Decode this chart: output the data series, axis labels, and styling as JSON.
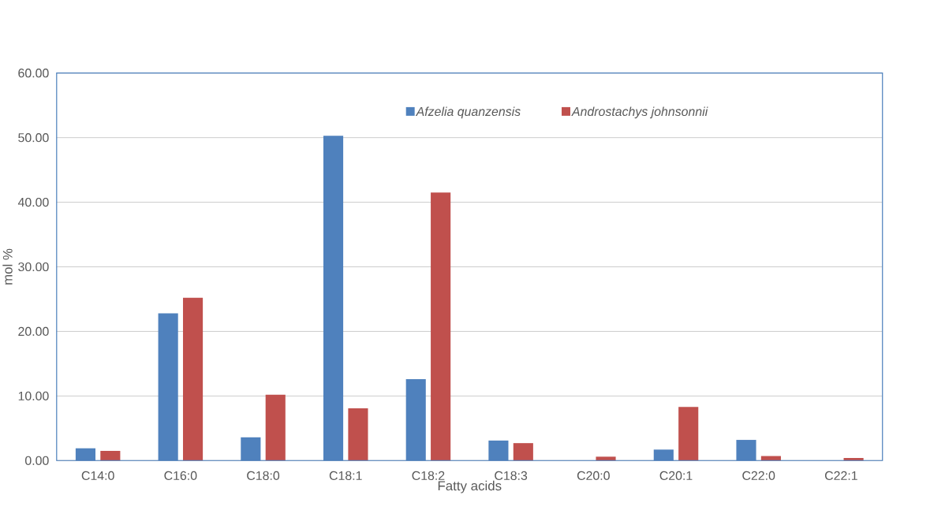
{
  "chart_data": {
    "type": "bar",
    "xlabel": "Fatty acids",
    "ylabel": "mol %",
    "categories": [
      "C14:0",
      "C16:0",
      "C18:0",
      "C18:1",
      "C18:2",
      "C18:3",
      "C20:0",
      "C20:1",
      "C22:0",
      "C22:1"
    ],
    "series": [
      {
        "name": "Afzelia quanzensis",
        "color": "#4f81bd",
        "values": [
          1.9,
          22.8,
          3.6,
          50.3,
          12.6,
          3.1,
          null,
          1.7,
          3.2,
          null
        ]
      },
      {
        "name": "Androstachys johnsonnii",
        "color": "#c0504d",
        "values": [
          1.5,
          25.2,
          10.2,
          8.1,
          41.5,
          2.7,
          0.6,
          8.3,
          0.7,
          0.4
        ]
      }
    ],
    "ylim": [
      0,
      60
    ],
    "yticks": [
      {
        "value": 0,
        "label": "0.00"
      },
      {
        "value": 10,
        "label": "10.00"
      },
      {
        "value": 20,
        "label": "20.00"
      },
      {
        "value": 30,
        "label": "30.00"
      },
      {
        "value": 40,
        "label": "40.00"
      },
      {
        "value": 50,
        "label": "50.00"
      },
      {
        "value": 60,
        "label": "60.00"
      }
    ],
    "grid": "y",
    "legend": "top right"
  }
}
